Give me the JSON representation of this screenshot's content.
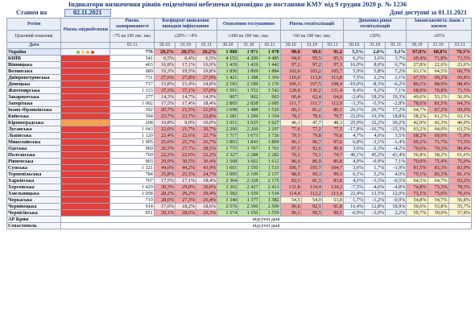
{
  "title": "Індикатори визначення рівнів епідемічної небезпеки відповідно до постанови КМУ від 9 грудня 2020 р. № 1236",
  "status_label": "Станом на",
  "status_date": "02.11.2021",
  "available_text": "Дані доступні за 01.11.2021",
  "colors": {
    "red": "#e2403a",
    "orange": "#f7a14c",
    "yellow": "#f6df4a",
    "green": "#7cc243"
  },
  "headers": {
    "region": "Регіон",
    "indicator_label": "Цільовий показник",
    "date": "Дата",
    "level": "Рівень епіднебезпеки",
    "incidence": "Рівень захворюваності",
    "incidence_target": "<75 на 100 тис. нас.",
    "incidence_date": "01.11",
    "positivity": "Коефіцієнт виявлення випадків інфікування",
    "positivity_target": "≤20% / <4%",
    "testing": "Охоплення тестуванням",
    "testing_target": "≥300 на 100 тис. нас.",
    "hosp": "Рівень госпіталізацій",
    "hosp_target": "<60 на 100 тис. нас.",
    "dynamics": "Динаміка рівня госпіталізацій",
    "dynamics_target": "≤50%",
    "occupancy": "Завантаженість ліжок з киснем",
    "occupancy_target": "≤65%",
    "dates3": [
      "30.10",
      "31.10",
      "01.11"
    ]
  },
  "no_data": "відсутні дані",
  "rows": [
    {
      "name": "Україна",
      "level": "dots",
      "inc": "776",
      "pos": [
        "20,2%",
        "20,3%",
        "20,2%"
      ],
      "test": [
        "1 988",
        "1 971",
        "1 978"
      ],
      "hosp": [
        "90,8",
        "90,6",
        "91,2"
      ],
      "dyn": [
        "5,5%",
        "2,8%",
        "3,3%"
      ],
      "occ": [
        "67,8%",
        "68,8%",
        "70,3%"
      ]
    },
    {
      "name": "КИЇВ",
      "level": "red",
      "inc": "541",
      "pos": [
        "6,5%",
        "6,4%",
        "6,5%"
      ],
      "test": [
        "4 153",
        "4 209",
        "4 485"
      ],
      "hosp": [
        "94,9",
        "95,5",
        "95,3"
      ],
      "dyn": [
        "6,2%",
        "2,6%",
        "3,7%"
      ],
      "occ": [
        "69,4%",
        "71,8%",
        "73,5%"
      ]
    },
    {
      "name": "Вінницька",
      "level": "red",
      "inc": "403",
      "pos": [
        "16,8%",
        "17,1%",
        "16,9%"
      ],
      "test": [
        "1 419",
        "1 419",
        "1 442"
      ],
      "hosp": [
        "97,2",
        "97,2",
        "97,3"
      ],
      "dyn": [
        "16,0%",
        "8,0%",
        "6,7%"
      ],
      "occ": [
        "27,8%",
        "22,6%",
        "23,6%"
      ]
    },
    {
      "name": "Волинська",
      "level": "red",
      "inc": "689",
      "pos": [
        "19,3%",
        "19,5%",
        "19,8%"
      ],
      "test": [
        "1 850",
        "1 869",
        "1 884"
      ],
      "hosp": [
        "102,6",
        "103,2",
        "105,7"
      ],
      "dyn": [
        "5,9%",
        "5,8%",
        "7,2%"
      ],
      "occ": [
        "63,1%",
        "64,5%",
        "66,7%"
      ]
    },
    {
      "name": "Дніпропетровська",
      "level": "red",
      "inc": "731",
      "pos": [
        "27,6%",
        "27,8%",
        "27,9%"
      ],
      "test": [
        "1 421",
        "1 388",
        "1 366"
      ],
      "hosp": [
        "116,0",
        "113,8",
        "113,8"
      ],
      "dyn": [
        "7,5%",
        "2,2%",
        "2,1%"
      ],
      "occ": [
        "67,3%",
        "69,2%",
        "69,8%"
      ]
    },
    {
      "name": "Донецька",
      "level": "red",
      "inc": "717",
      "pos": [
        "15,8%",
        "15,4%",
        "14,8%"
      ],
      "test": [
        "2 193",
        "2 189",
        "2 176"
      ],
      "hosp": [
        "106,3",
        "107,5",
        "108,4"
      ],
      "dyn": [
        "-10,0%",
        "-8,3%",
        "-6,2%"
      ],
      "occ": [
        "86,1%",
        "88,9%",
        "88,4%"
      ]
    },
    {
      "name": "Житомирська",
      "level": "red",
      "inc": "1 133",
      "pos": [
        "37,3%",
        "37,1%",
        "37,0%"
      ],
      "test": [
        "1 591",
        "1 552",
        "1 542"
      ],
      "hosp": [
        "129,8",
        "130,2",
        "131,4"
      ],
      "dyn": [
        "9,4%",
        "9,2%",
        "7,1%"
      ],
      "occ": [
        "68,0%",
        "70,8%",
        "73,5%"
      ]
    },
    {
      "name": "Закарпатська",
      "level": "red",
      "inc": "277",
      "pos": [
        "14,3%",
        "14,7%",
        "14,9%"
      ],
      "test": [
        "967",
        "962",
        "963"
      ],
      "hosp": [
        "60,4",
        "62,4",
        "64,0"
      ],
      "dyn": [
        "-2,4%",
        "18,2%",
        "19,3%"
      ],
      "occ": [
        "49,6%",
        "53,1%",
        "56,9%"
      ]
    },
    {
      "name": "Запорізька",
      "level": "red",
      "inc": "1 002",
      "pos": [
        "17,5%",
        "17,4%",
        "18,4%"
      ],
      "test": [
        "2 865",
        "2 828",
        "2 685"
      ],
      "hosp": [
        "111,7",
        "111,7",
        "112,9"
      ],
      "dyn": [
        "-3,3%",
        "-5,5%",
        "-2,8%"
      ],
      "occ": [
        "78,6%",
        "81,5%",
        "84,3%"
      ]
    },
    {
      "name": "Івано-Франківська",
      "level": "red",
      "inc": "592",
      "pos": [
        "20,7%",
        "21,5%",
        "21,0%"
      ],
      "test": [
        "1 698",
        "1 488",
        "1 520"
      ],
      "hosp": [
        "80,3",
        "81,2",
        "80,1"
      ],
      "dyn": [
        "26,1%",
        "20,7%",
        "17,2%"
      ],
      "occ": [
        "64,7%",
        "67,2%",
        "69,6%"
      ]
    },
    {
      "name": "Київська",
      "level": "red",
      "inc": "594",
      "pos": [
        "23,7%",
        "23,7%",
        "22,8%"
      ],
      "test": [
        "1 281",
        "1 299",
        "1 354"
      ],
      "hosp": [
        "78,3",
        "78,6",
        "79,7"
      ],
      "dyn": [
        "22,0%",
        "19,3%",
        "18,8%"
      ],
      "occ": [
        "58,2%",
        "61,2%",
        "62,1%"
      ]
    },
    {
      "name": "Кіровоградська",
      "level": "orange",
      "inc": "208",
      "pos": [
        "10,8%",
        "9,9%",
        "10,0%"
      ],
      "test": [
        "1 611",
        "1 635",
        "1 627"
      ],
      "hosp": [
        "46,1",
        "47,7",
        "48,3"
      ],
      "dyn": [
        "25,9%",
        "32,2%",
        "30,2%"
      ],
      "occ": [
        "42,9%",
        "42,3%",
        "40,0%"
      ]
    },
    {
      "name": "Луганська",
      "level": "red",
      "inc": "1 043",
      "pos": [
        "22,0%",
        "21,7%",
        "20,7%"
      ],
      "test": [
        "2 290",
        "2 269",
        "2 297"
      ],
      "hosp": [
        "77,6",
        "77,2",
        "77,5"
      ],
      "dyn": [
        "-17,8%",
        "-16,7%",
        "-15,3%"
      ],
      "occ": [
        "63,2%",
        "64,0%",
        "63,5%"
      ]
    },
    {
      "name": "Львівська",
      "level": "red",
      "inc": "1 120",
      "pos": [
        "22,4%",
        "22,6%",
        "22,7%"
      ],
      "test": [
        "1 717",
        "1 673",
        "1 726"
      ],
      "hosp": [
        "79,5",
        "79,8",
        "79,8"
      ],
      "dyn": [
        "4,7%",
        "4,0%",
        "3,5%"
      ],
      "occ": [
        "68,2%",
        "69,6%",
        "71,0%"
      ]
    },
    {
      "name": "Миколаївська",
      "level": "red",
      "inc": "1 005",
      "pos": [
        "25,6%",
        "25,7%",
        "26,7%"
      ],
      "test": [
        "1 863",
        "1 843",
        "1 809"
      ],
      "hosp": [
        "96,1",
        "96,7",
        "97,6"
      ],
      "dyn": [
        "6,8%",
        "-3,1%",
        "-1,4%"
      ],
      "occ": [
        "69,2%",
        "71,7%",
        "73,5%"
      ]
    },
    {
      "name": "Одеська",
      "level": "red",
      "inc": "969",
      "pos": [
        "26,5%",
        "27,7%",
        "28,5%"
      ],
      "test": [
        "1 773",
        "1 767",
        "1 761"
      ],
      "hosp": [
        "97,5",
        "92,6",
        "90,0"
      ],
      "dyn": [
        "3,6%",
        "-2,3%",
        "-4,2%"
      ],
      "occ": [
        "76,6%",
        "79,3%",
        "80,4%"
      ]
    },
    {
      "name": "Полтавська",
      "level": "red",
      "inc": "760",
      "pos": [
        "22,2%",
        "22,6%",
        "22,2%"
      ],
      "test": [
        "2 327",
        "2 288",
        "2 282"
      ],
      "hosp": [
        "76,1",
        "76,1",
        "74,7"
      ],
      "dyn": [
        "46,1%",
        "45,2%",
        "41,4%"
      ],
      "occ": [
        "56,8%",
        "58,2%",
        "61,6%"
      ]
    },
    {
      "name": "Рівненська",
      "level": "red",
      "inc": "903",
      "pos": [
        "29,9%",
        "30,5%",
        "30,4%"
      ],
      "test": [
        "1 568",
        "1 602",
        "1 612"
      ],
      "hosp": [
        "86,6",
        "86,9",
        "86,8"
      ],
      "dyn": [
        "4,9%",
        "-0,9%",
        "7,1%"
      ],
      "occ": [
        "70,0%",
        "71,4%",
        "75,0%"
      ]
    },
    {
      "name": "Сумська",
      "level": "red",
      "inc": "1 321",
      "pos": [
        "44,6%",
        "44,2%",
        "43,9%"
      ],
      "test": [
        "1 601",
        "1 550",
        "1 533"
      ],
      "hosp": [
        "106,7",
        "105,7",
        "104,7"
      ],
      "dyn": [
        "3,6%",
        "1,7%",
        "-1,9%"
      ],
      "occ": [
        "81,5%",
        "83,3%",
        "83,9%"
      ]
    },
    {
      "name": "Тернопільська",
      "level": "red",
      "inc": "784",
      "pos": [
        "25,8%",
        "25,5%",
        "24,7%"
      ],
      "test": [
        "2 095",
        "2 109",
        "2 157"
      ],
      "hosp": [
        "98,9",
        "99,3",
        "99,3"
      ],
      "dyn": [
        "6,1%",
        "5,2%",
        "4,0%"
      ],
      "occ": [
        "79,1%",
        "83,3%",
        "81,1%"
      ]
    },
    {
      "name": "Харківська",
      "level": "red",
      "inc": "767",
      "pos": [
        "17,5%",
        "17,1%",
        "18,4%"
      ],
      "test": [
        "2 364",
        "2 328",
        "2 175"
      ],
      "hosp": [
        "82,5",
        "81,5",
        "83,8"
      ],
      "dyn": [
        "4,5%",
        "-3,5%",
        "-6,5%"
      ],
      "occ": [
        "64,5%",
        "64,7%",
        "65,2%"
      ]
    },
    {
      "name": "Херсонська",
      "level": "red",
      "inc": "1 429",
      "pos": [
        "30,3%",
        "29,8%",
        "30,0%"
      ],
      "test": [
        "2 362",
        "2 427",
        "2 413"
      ],
      "hosp": [
        "131,8",
        "134,4",
        "134,2"
      ],
      "dyn": [
        "-7,5%",
        "-4,6%",
        "-4,8%"
      ],
      "occ": [
        "74,8%",
        "75,3%",
        "78,5%"
      ]
    },
    {
      "name": "Хмельницька",
      "level": "red",
      "inc": "1 058",
      "pos": [
        "28,2%",
        "29,2%",
        "29,4%"
      ],
      "test": [
        "1 582",
        "1 559",
        "1 534"
      ],
      "hosp": [
        "114,4",
        "112,2",
        "113,4"
      ],
      "dyn": [
        "22,4%",
        "12,5%",
        "12,0%"
      ],
      "occ": [
        "73,1%",
        "75,0%",
        "76,6%"
      ]
    },
    {
      "name": "Черкаська",
      "level": "red",
      "inc": "710",
      "pos": [
        "28,0%",
        "27,3%",
        "26,4%"
      ],
      "test": [
        "1 340",
        "1 377",
        "1 382"
      ],
      "hosp": [
        "54,5",
        "54,0",
        "53,8"
      ],
      "dyn": [
        "1,7%",
        "-1,2%",
        "-0,9%"
      ],
      "occ": [
        "54,8%",
        "54,7%",
        "56,8%"
      ]
    },
    {
      "name": "Чернівецька",
      "level": "red",
      "inc": "914",
      "pos": [
        "17,0%",
        "18,2%",
        "18,6%"
      ],
      "test": [
        "2 576",
        "2 590",
        "2 590"
      ],
      "hosp": [
        "96,6",
        "92,1",
        "91,8"
      ],
      "dyn": [
        "16,4%",
        "12,8%",
        "18,9%"
      ],
      "occ": [
        "50,6%",
        "53,8%",
        "55,7%"
      ]
    },
    {
      "name": "Чернігівська",
      "level": "red",
      "inc": "851",
      "pos": [
        "30,1%",
        "28,6%",
        "29,3%"
      ],
      "test": [
        "1 574",
        "1 550",
        "1 559"
      ],
      "hosp": [
        "96,3",
        "99,5",
        "99,5"
      ],
      "dyn": [
        "-0,9%",
        "-3,0%",
        "2,2%"
      ],
      "occ": [
        "59,7%",
        "59,0%",
        "57,8%"
      ]
    }
  ],
  "nodata_rows": [
    {
      "name": "АР Крим"
    },
    {
      "name": "Севастополь"
    }
  ]
}
